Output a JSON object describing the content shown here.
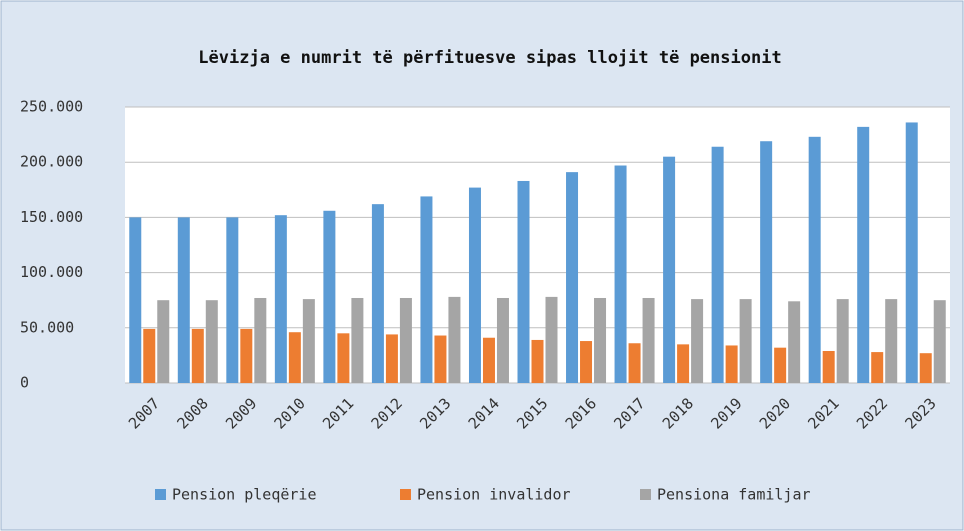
{
  "chart_data": {
    "type": "bar",
    "title": "Lëvizja e numrit të përfituesve sipas llojit të pensionit",
    "categories": [
      "2007",
      "2008",
      "2009",
      "2010",
      "2011",
      "2012",
      "2013",
      "2014",
      "2015",
      "2016",
      "2017",
      "2018",
      "2019",
      "2020",
      "2021",
      "2022",
      "2023"
    ],
    "series": [
      {
        "name": "Pension pleqërie",
        "color": "#5b9bd5",
        "values": [
          150000,
          150000,
          150000,
          152000,
          156000,
          162000,
          169000,
          177000,
          183000,
          191000,
          197000,
          205000,
          214000,
          219000,
          223000,
          232000,
          236000
        ]
      },
      {
        "name": "Pension invalidor",
        "color": "#ed7d31",
        "values": [
          49000,
          49000,
          49000,
          46000,
          45000,
          44000,
          43000,
          41000,
          39000,
          38000,
          36000,
          35000,
          34000,
          32000,
          29000,
          28000,
          27000
        ]
      },
      {
        "name": "Pensiona familjar",
        "color": "#a5a5a5",
        "values": [
          75000,
          75000,
          77000,
          76000,
          77000,
          77000,
          78000,
          77000,
          78000,
          77000,
          77000,
          76000,
          76000,
          74000,
          76000,
          76000,
          75000
        ]
      }
    ],
    "ylim": [
      0,
      250000
    ],
    "yticks": [
      0,
      {
        "value": 50000,
        "label": "50.000"
      },
      {
        "value": 100000,
        "label": "100.000"
      },
      {
        "value": 150000,
        "label": "150.000"
      },
      {
        "value": 200000,
        "label": "200.000"
      },
      {
        "value": 250000,
        "label": "250.000"
      }
    ],
    "grid": true,
    "legend": "bottom"
  }
}
